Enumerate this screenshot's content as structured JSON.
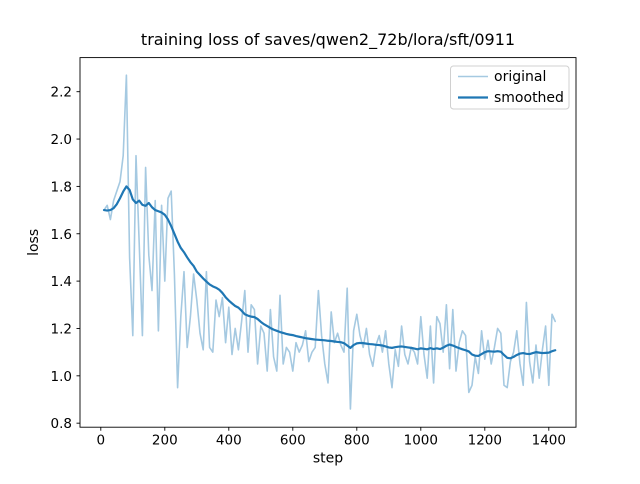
{
  "chart_data": {
    "type": "line",
    "title": "training loss of saves/qwen2_72b/lora/sft/0911",
    "xlabel": "step",
    "ylabel": "loss",
    "xlim": [
      -65,
      1485
    ],
    "ylim": [
      0.783,
      2.344
    ],
    "x_ticks": [
      0,
      200,
      400,
      600,
      800,
      1000,
      1200,
      1400
    ],
    "x_tick_labels": [
      "0",
      "200",
      "400",
      "600",
      "800",
      "1000",
      "1200",
      "1400"
    ],
    "y_ticks": [
      0.8,
      1.0,
      1.2,
      1.4,
      1.6,
      1.8,
      2.0,
      2.2
    ],
    "y_tick_labels": [
      "0.8",
      "1.0",
      "1.2",
      "1.4",
      "1.6",
      "1.8",
      "2.0",
      "2.2"
    ],
    "grid": false,
    "legend": {
      "position": "upper right",
      "entries": [
        "original",
        "smoothed"
      ]
    },
    "x": {
      "start": 10,
      "step": 10,
      "count": 142
    },
    "series": [
      {
        "name": "original",
        "color": "#1f77b4",
        "opacity": 0.4,
        "line_width": 1.6,
        "values": [
          1.7,
          1.72,
          1.66,
          1.74,
          1.78,
          1.82,
          1.93,
          2.27,
          1.5,
          1.17,
          1.93,
          1.56,
          1.17,
          1.88,
          1.51,
          1.36,
          1.74,
          1.19,
          1.72,
          1.4,
          1.75,
          1.78,
          1.43,
          0.95,
          1.25,
          1.44,
          1.12,
          1.25,
          1.43,
          1.32,
          1.18,
          1.11,
          1.44,
          1.12,
          1.1,
          1.32,
          1.25,
          1.33,
          1.14,
          1.29,
          1.09,
          1.2,
          1.11,
          1.23,
          1.36,
          1.1,
          1.3,
          1.28,
          1.05,
          1.21,
          1.18,
          1.02,
          1.28,
          1.08,
          1.02,
          1.34,
          1.05,
          1.12,
          1.1,
          1.02,
          1.14,
          1.1,
          1.13,
          1.19,
          1.06,
          1.1,
          1.12,
          1.36,
          1.17,
          1.05,
          0.97,
          1.27,
          1.14,
          1.18,
          1.13,
          1.1,
          1.37,
          0.86,
          1.19,
          1.26,
          1.17,
          1.12,
          1.2,
          1.09,
          1.04,
          1.13,
          1.17,
          1.1,
          1.19,
          1.05,
          0.95,
          1.11,
          1.04,
          1.21,
          1.09,
          1.05,
          1.12,
          1.1,
          1.05,
          1.25,
          1.09,
          0.99,
          1.21,
          0.97,
          1.25,
          1.22,
          1.1,
          1.3,
          1.03,
          1.28,
          1.02,
          1.14,
          1.19,
          1.17,
          0.93,
          0.96,
          1.08,
          1.01,
          1.19,
          1.07,
          1.15,
          1.05,
          1.12,
          1.2,
          1.18,
          0.96,
          0.95,
          1.06,
          1.1,
          1.19,
          1.05,
          0.96,
          1.31,
          1.06,
          0.97,
          1.13,
          0.99,
          1.11,
          1.21,
          0.96,
          1.26,
          1.23
        ]
      },
      {
        "name": "smoothed",
        "color": "#1f77b4",
        "opacity": 1.0,
        "line_width": 2.2,
        "values": [
          1.7,
          1.698,
          1.7,
          1.708,
          1.725,
          1.75,
          1.778,
          1.8,
          1.785,
          1.745,
          1.73,
          1.74,
          1.722,
          1.718,
          1.73,
          1.712,
          1.7,
          1.695,
          1.69,
          1.68,
          1.66,
          1.632,
          1.6,
          1.567,
          1.54,
          1.522,
          1.5,
          1.48,
          1.464,
          1.44,
          1.426,
          1.411,
          1.398,
          1.386,
          1.378,
          1.372,
          1.364,
          1.35,
          1.332,
          1.318,
          1.306,
          1.295,
          1.288,
          1.275,
          1.26,
          1.254,
          1.25,
          1.248,
          1.24,
          1.228,
          1.218,
          1.21,
          1.202,
          1.195,
          1.19,
          1.185,
          1.181,
          1.177,
          1.174,
          1.172,
          1.168,
          1.165,
          1.162,
          1.159,
          1.157,
          1.155,
          1.153,
          1.152,
          1.151,
          1.15,
          1.148,
          1.147,
          1.145,
          1.143,
          1.142,
          1.138,
          1.128,
          1.118,
          1.13,
          1.137,
          1.139,
          1.138,
          1.136,
          1.134,
          1.133,
          1.131,
          1.13,
          1.128,
          1.124,
          1.12,
          1.118,
          1.121,
          1.123,
          1.124,
          1.122,
          1.12,
          1.118,
          1.115,
          1.112,
          1.116,
          1.114,
          1.112,
          1.117,
          1.113,
          1.116,
          1.113,
          1.119,
          1.127,
          1.132,
          1.128,
          1.122,
          1.117,
          1.112,
          1.108,
          1.103,
          1.09,
          1.085,
          1.084,
          1.092,
          1.1,
          1.104,
          1.103,
          1.102,
          1.104,
          1.102,
          1.088,
          1.076,
          1.074,
          1.08,
          1.088,
          1.094,
          1.096,
          1.093,
          1.092,
          1.096,
          1.1,
          1.098,
          1.096,
          1.097,
          1.098,
          1.104,
          1.108
        ]
      }
    ],
    "colors": {
      "axes": "#000000",
      "legend_border": "#d0d0d0",
      "background": "#ffffff"
    }
  }
}
